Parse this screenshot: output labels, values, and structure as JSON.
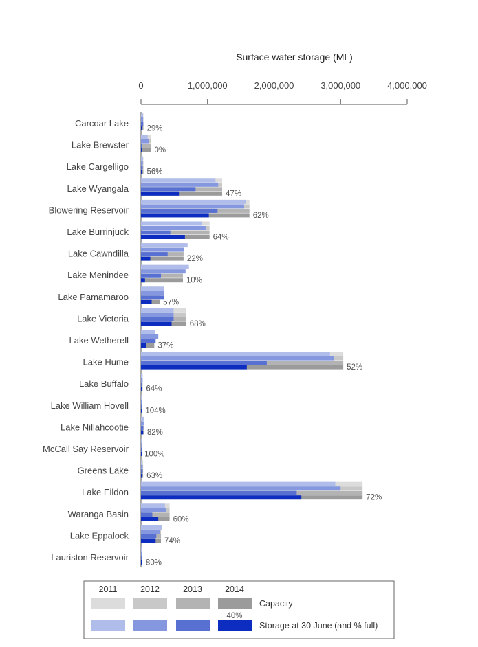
{
  "chart_data": {
    "type": "bar",
    "orientation": "horizontal",
    "title": "Surface water storage (ML)",
    "x_tick_labels": [
      "0",
      "1,000,000",
      "2,000,000",
      "3,000,000",
      "4,000,000"
    ],
    "xlim": [
      0,
      4000000
    ],
    "years": [
      "2011",
      "2012",
      "2013",
      "2014"
    ],
    "legend": {
      "capacity_label": "Capacity",
      "storage_label": "Storage at 30 June (and % full)",
      "example_pct": "40%"
    },
    "colors": {
      "capacity": [
        "#dcdcdc",
        "#c8c8c8",
        "#b3b3b3",
        "#9b9b9b"
      ],
      "storage": [
        "#b0bce9",
        "#8598df",
        "#5770d2",
        "#0c2dbf"
      ]
    },
    "categories": [
      {
        "name": "Carcoar Lake",
        "pct": "29%",
        "capacity": 36000,
        "storage": [
          30000,
          32000,
          34000,
          10000
        ]
      },
      {
        "name": "Lake Brewster",
        "pct": "0%",
        "capacity": 150000,
        "storage": [
          100000,
          120000,
          20000,
          0
        ]
      },
      {
        "name": "Lake Cargelligo",
        "pct": "56%",
        "capacity": 36000,
        "storage": [
          30000,
          28000,
          25000,
          20000
        ]
      },
      {
        "name": "Lake Wyangala",
        "pct": "47%",
        "capacity": 1220000,
        "storage": [
          1120000,
          1160000,
          820000,
          570000
        ]
      },
      {
        "name": "Blowering Reservoir",
        "pct": "62%",
        "capacity": 1630000,
        "storage": [
          1580000,
          1550000,
          1150000,
          1020000
        ]
      },
      {
        "name": "Lake Burrinjuck",
        "pct": "64%",
        "capacity": 1030000,
        "storage": [
          920000,
          970000,
          440000,
          660000
        ]
      },
      {
        "name": "Lake Cawndilla",
        "pct": "22%",
        "capacity": 640000,
        "storage": [
          700000,
          650000,
          400000,
          140000
        ]
      },
      {
        "name": "Lake Menindee",
        "pct": "10%",
        "capacity": 630000,
        "storage": [
          720000,
          670000,
          300000,
          60000
        ]
      },
      {
        "name": "Lake Pamamaroo",
        "pct": "57%",
        "capacity": 280000,
        "storage": [
          350000,
          350000,
          350000,
          160000
        ]
      },
      {
        "name": "Lake Victoria",
        "pct": "68%",
        "capacity": 680000,
        "storage": [
          490000,
          490000,
          490000,
          460000
        ]
      },
      {
        "name": "Lake Wetherell",
        "pct": "37%",
        "capacity": 200000,
        "storage": [
          210000,
          260000,
          220000,
          75000
        ]
      },
      {
        "name": "Lake Hume",
        "pct": "52%",
        "capacity": 3040000,
        "storage": [
          2840000,
          2900000,
          1890000,
          1590000
        ]
      },
      {
        "name": "Lake Buffalo",
        "pct": "64%",
        "capacity": 24000,
        "storage": [
          24000,
          24000,
          20000,
          15000
        ]
      },
      {
        "name": "Lake William Hovell",
        "pct": "104%",
        "capacity": 14000,
        "storage": [
          14000,
          14000,
          14000,
          14000
        ]
      },
      {
        "name": "Lake Nillahcootie",
        "pct": "82%",
        "capacity": 40000,
        "storage": [
          40000,
          40000,
          35000,
          33000
        ]
      },
      {
        "name": "McCall Say Reservoir",
        "pct": "100%",
        "capacity": 1000,
        "storage": [
          1000,
          1000,
          1000,
          1000
        ]
      },
      {
        "name": "Greens Lake",
        "pct": "63%",
        "capacity": 32000,
        "storage": [
          20000,
          25000,
          25000,
          20000
        ]
      },
      {
        "name": "Lake Eildon",
        "pct": "72%",
        "capacity": 3330000,
        "storage": [
          2920000,
          3000000,
          2340000,
          2410000
        ]
      },
      {
        "name": "Waranga Basin",
        "pct": "60%",
        "capacity": 430000,
        "storage": [
          360000,
          380000,
          170000,
          260000
        ]
      },
      {
        "name": "Lake Eppalock",
        "pct": "74%",
        "capacity": 300000,
        "storage": [
          310000,
          280000,
          230000,
          220000
        ]
      },
      {
        "name": "Lauriston Reservoir",
        "pct": "80%",
        "capacity": 20000,
        "storage": [
          20000,
          20000,
          20000,
          16000
        ]
      }
    ]
  }
}
